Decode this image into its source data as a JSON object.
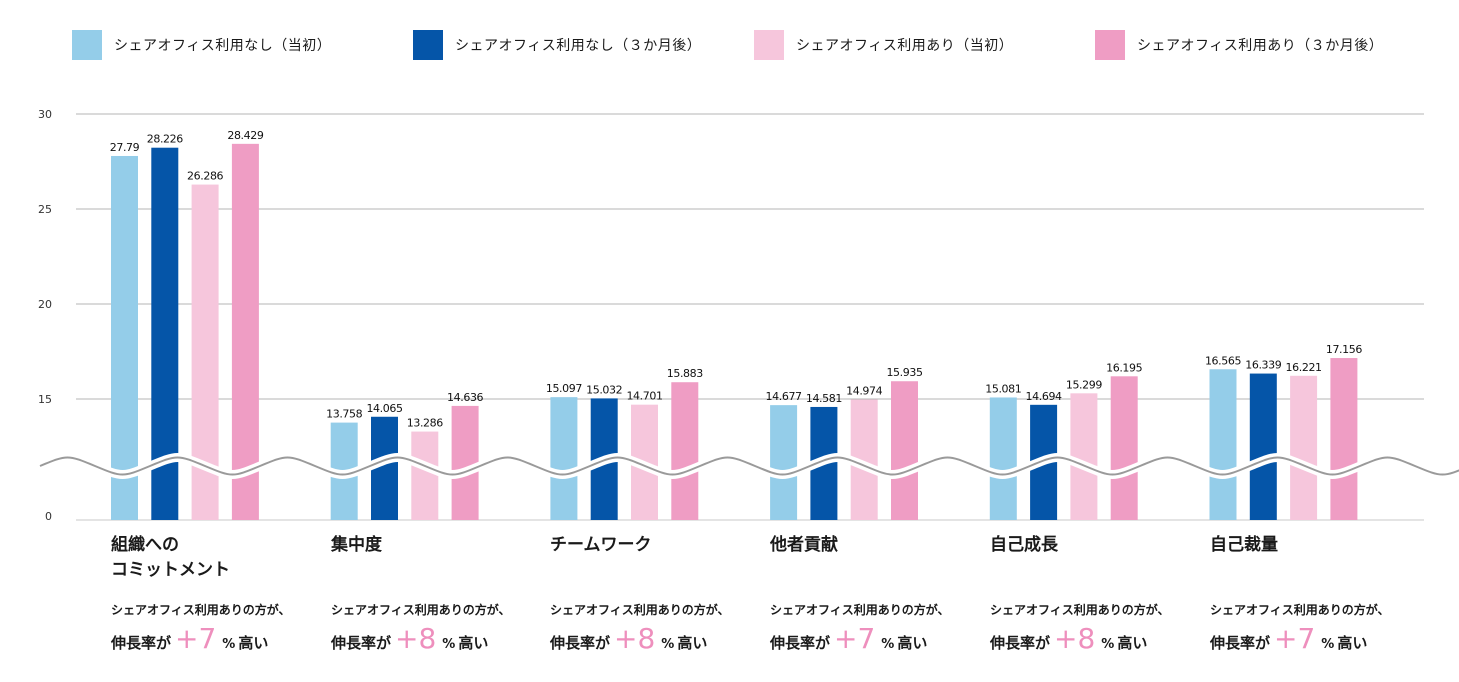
{
  "chart_data": {
    "type": "bar",
    "title": "",
    "xlabel": "",
    "ylabel": "",
    "ylim": [
      0,
      30
    ],
    "axis_break": true,
    "ytick_labels": [
      "30",
      "25",
      "20",
      "15",
      "0"
    ],
    "ytick_values": [
      30,
      25,
      20,
      15,
      0
    ],
    "grid": true,
    "legend": "top",
    "categories": [
      "組織への\nコミットメント",
      "集中度",
      "チームワーク",
      "他者貢献",
      "自己成長",
      "自己裁量"
    ],
    "series": [
      {
        "name": "シェアオフィス利用なし（当初）",
        "color": "#94cde9",
        "values": [
          27.79,
          13.758,
          15.097,
          14.677,
          15.081,
          16.565
        ],
        "labels": [
          "27.79",
          "13.758",
          "15.097",
          "14.677",
          "15.081",
          "16.565"
        ]
      },
      {
        "name": "シェアオフィス利用なし（３か月後）",
        "color": "#0555a8",
        "values": [
          28.226,
          14.065,
          15.032,
          14.581,
          14.694,
          16.339
        ],
        "labels": [
          "28.226",
          "14.065",
          "15.032",
          "14.581",
          "14.694",
          "16.339"
        ]
      },
      {
        "name": "シェアオフィス利用あり（当初）",
        "color": "#f6c6dc",
        "values": [
          26.286,
          13.286,
          14.701,
          14.974,
          15.299,
          16.221
        ],
        "labels": [
          "26.286",
          "13.286",
          "14.701",
          "14.974",
          "15.299",
          "16.221"
        ]
      },
      {
        "name": "シェアオフィス利用あり（３か月後）",
        "color": "#ef9dc4",
        "values": [
          28.429,
          14.636,
          15.883,
          15.935,
          16.195,
          17.156
        ],
        "labels": [
          "28.429",
          "14.636",
          "15.883",
          "15.935",
          "16.195",
          "17.156"
        ]
      }
    ],
    "annotations": [
      {
        "line1": "シェアオフィス利用ありの方が、",
        "prefix": "伸長率が",
        "value": "+7",
        "unit": "%",
        "suffix": "高い"
      },
      {
        "line1": "シェアオフィス利用ありの方が、",
        "prefix": "伸長率が",
        "value": "+8",
        "unit": "%",
        "suffix": "高い"
      },
      {
        "line1": "シェアオフィス利用ありの方が、",
        "prefix": "伸長率が",
        "value": "+8",
        "unit": "%",
        "suffix": "高い"
      },
      {
        "line1": "シェアオフィス利用ありの方が、",
        "prefix": "伸長率が",
        "value": "+7",
        "unit": "%",
        "suffix": "高い"
      },
      {
        "line1": "シェアオフィス利用ありの方が、",
        "prefix": "伸長率が",
        "value": "+8",
        "unit": "%",
        "suffix": "高い"
      },
      {
        "line1": "シェアオフィス利用ありの方が、",
        "prefix": "伸長率が",
        "value": "+7",
        "unit": "%",
        "suffix": "高い"
      }
    ]
  }
}
